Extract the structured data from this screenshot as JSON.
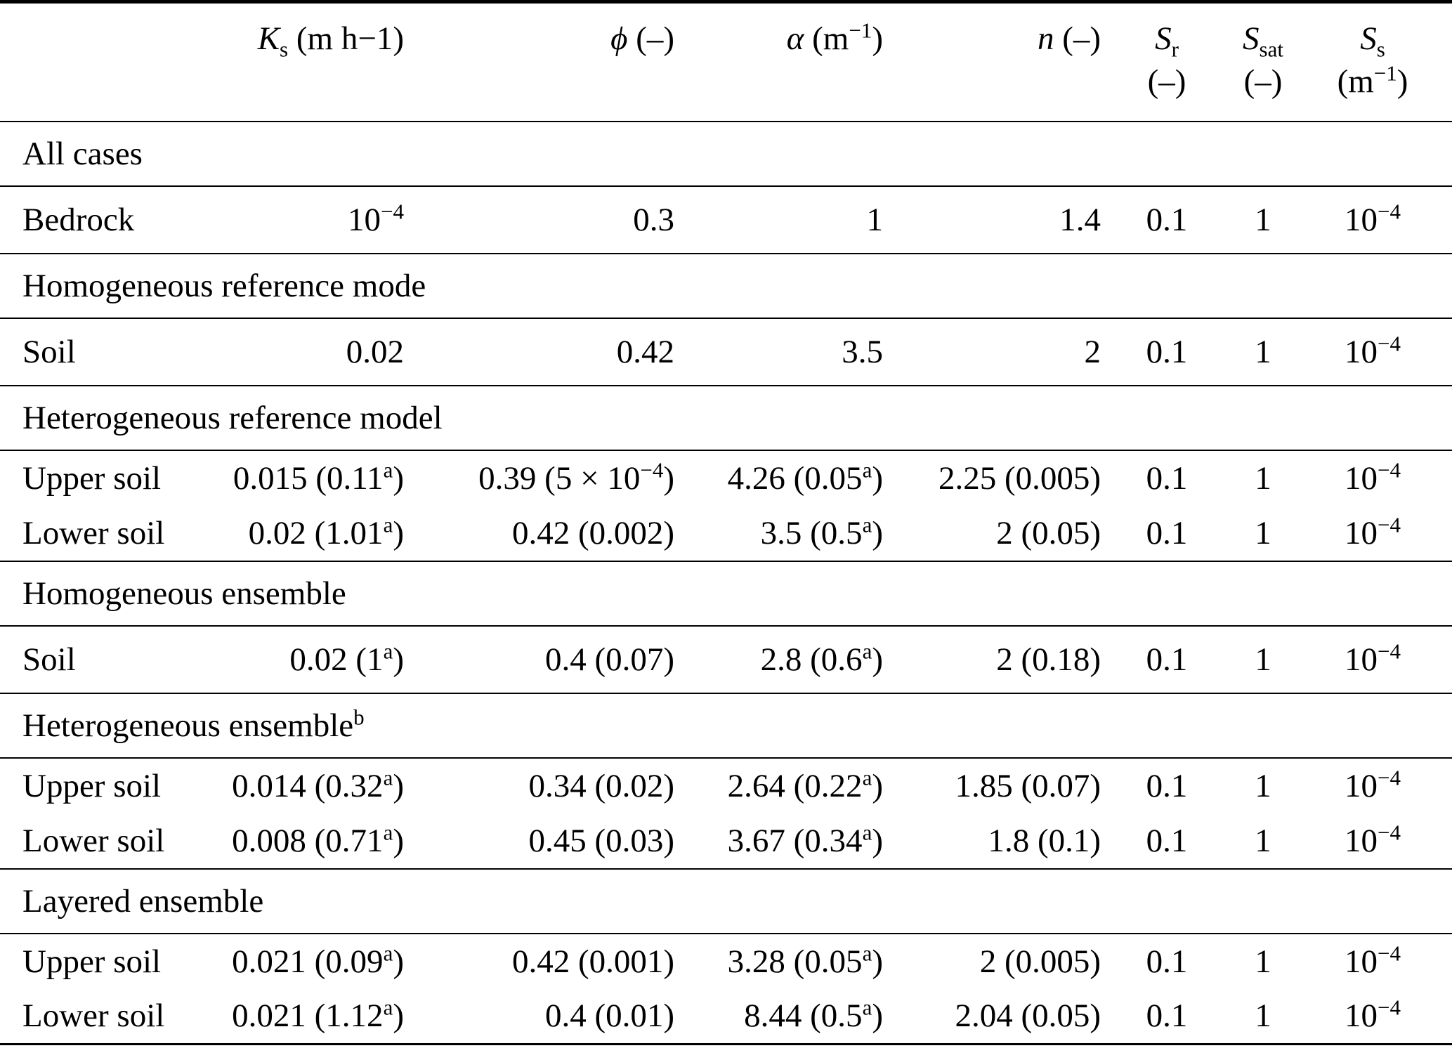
{
  "page": {
    "background_color": "#ffffff",
    "text_color": "#000000"
  },
  "table": {
    "header": {
      "label": "",
      "ks": "<i>K</i><sub>s</sub> (m h−1)",
      "phi": "<i>ϕ</i> (–)",
      "alpha": "<i>α</i> (m<sup>−1</sup>)",
      "n": "<i>n</i> (–)",
      "sr_line1": "<i>S</i><sub>r</sub>",
      "sr_line2": "(–)",
      "ssat_line1": "<i>S</i><sub>sat</sub>",
      "ssat_line2": "(–)",
      "ss_line1": "<i>S</i><sub>s</sub>",
      "ss_line2": "(m<sup>−1</sup>)"
    },
    "sections": [
      {
        "title": "All cases",
        "rows": [
          {
            "label": "Bedrock",
            "ks": "10<sup>−4</sup>",
            "phi": "0.3",
            "alpha": "1",
            "n": "1.4",
            "sr": "0.1",
            "ssat": "1",
            "ss": "10<sup>−4</sup>"
          }
        ]
      },
      {
        "title": "Homogeneous reference mode",
        "rows": [
          {
            "label": "Soil",
            "ks": "0.02",
            "phi": "0.42",
            "alpha": "3.5",
            "n": "2",
            "sr": "0.1",
            "ssat": "1",
            "ss": "10<sup>−4</sup>"
          }
        ]
      },
      {
        "title": "Heterogeneous reference model",
        "rows": [
          {
            "label": "Upper soil",
            "ks": "0.015 (0.11<sup>a</sup>)",
            "phi": "0.39 (5 × 10<sup>−4</sup>)",
            "alpha": "4.26 (0.05<sup>a</sup>)",
            "n": "2.25 (0.005)",
            "sr": "0.1",
            "ssat": "1",
            "ss": "10<sup>−4</sup>"
          },
          {
            "label": "Lower soil",
            "ks": "0.02 (1.01<sup>a</sup>)",
            "phi": "0.42 (0.002)",
            "alpha": "3.5 (0.5<sup>a</sup>)",
            "n": "2 (0.05)",
            "sr": "0.1",
            "ssat": "1",
            "ss": "10<sup>−4</sup>"
          }
        ]
      },
      {
        "title": "Homogeneous ensemble",
        "rows": [
          {
            "label": "Soil",
            "ks": "0.02 (1<sup>a</sup>)",
            "phi": "0.4 (0.07)",
            "alpha": "2.8 (0.6<sup>a</sup>)",
            "n": "2 (0.18)",
            "sr": "0.1",
            "ssat": "1",
            "ss": "10<sup>−4</sup>"
          }
        ]
      },
      {
        "title": "Heterogeneous ensemble<sup>b</sup>",
        "rows": [
          {
            "label": "Upper soil",
            "ks": "0.014 (0.32<sup>a</sup>)",
            "phi": "0.34 (0.02)",
            "alpha": "2.64 (0.22<sup>a</sup>)",
            "n": "1.85 (0.07)",
            "sr": "0.1",
            "ssat": "1",
            "ss": "10<sup>−4</sup>"
          },
          {
            "label": "Lower soil",
            "ks": "0.008 (0.71<sup>a</sup>)",
            "phi": "0.45 (0.03)",
            "alpha": "3.67 (0.34<sup>a</sup>)",
            "n": "1.8 (0.1)",
            "sr": "0.1",
            "ssat": "1",
            "ss": "10<sup>−4</sup>"
          }
        ]
      },
      {
        "title": "Layered ensemble",
        "rows": [
          {
            "label": "Upper soil",
            "ks": "0.021 (0.09<sup>a</sup>)",
            "phi": "0.42 (0.001)",
            "alpha": "3.28 (0.05<sup>a</sup>)",
            "n": "2 (0.005)",
            "sr": "0.1",
            "ssat": "1",
            "ss": "10<sup>−4</sup>"
          },
          {
            "label": "Lower soil",
            "ks": "0.021 (1.12<sup>a</sup>)",
            "phi": "0.4 (0.01)",
            "alpha": "8.44 (0.5<sup>a</sup>)",
            "n": "2.04 (0.05)",
            "sr": "0.1",
            "ssat": "1",
            "ss": "10<sup>−4</sup>"
          }
        ]
      }
    ]
  }
}
